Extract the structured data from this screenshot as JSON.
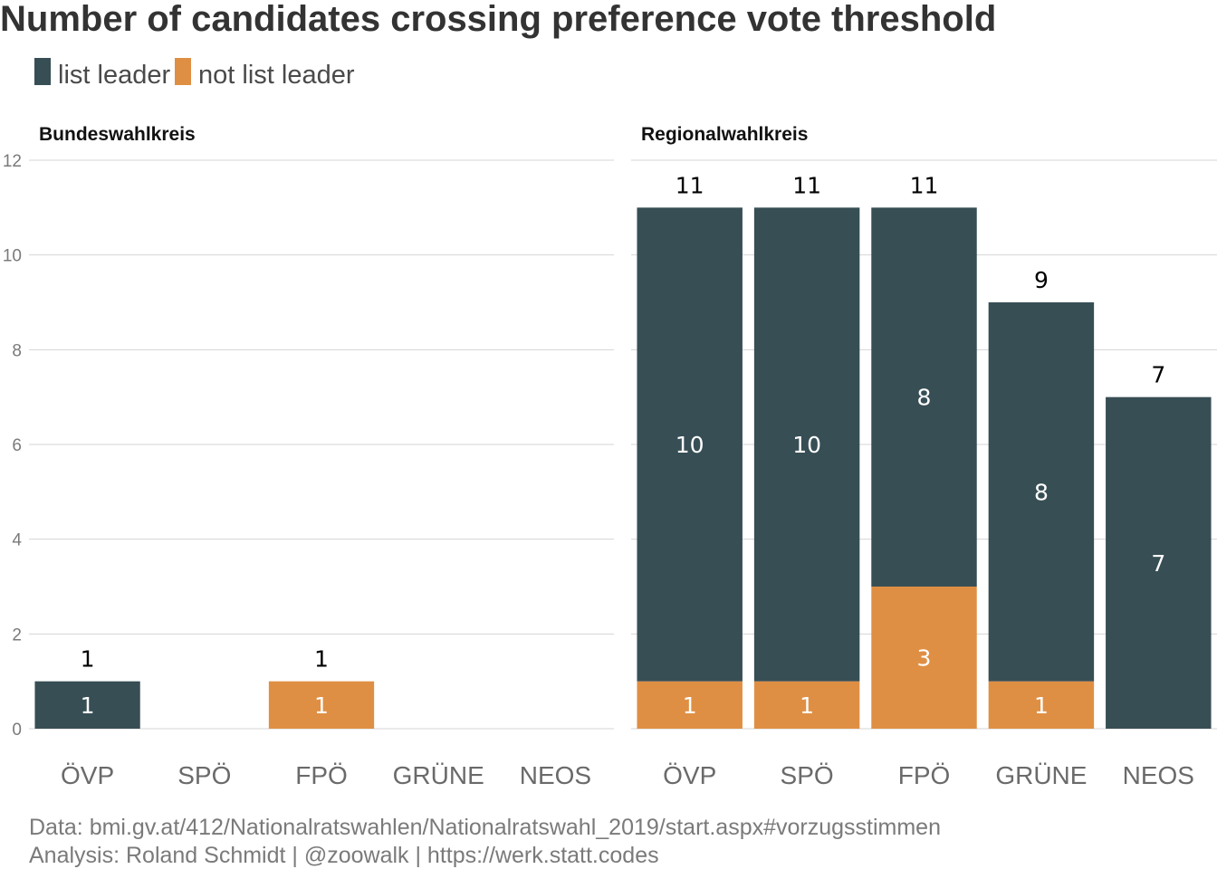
{
  "title": "Number of candidates crossing preference vote threshold",
  "legend": [
    {
      "label": "list leader",
      "color": "#374e55"
    },
    {
      "label": "not list leader",
      "color": "#df8f44"
    }
  ],
  "caption": {
    "line1": "Data: bmi.gv.at/412/Nationalratswahlen/Nationalratswahl_2019/start.aspx#vorzugsstimmen",
    "line2": "Analysis: Roland Schmidt | @zoowalk | https://werk.statt.codes"
  },
  "chart_data": {
    "type": "bar",
    "stacked": true,
    "ylim": [
      0,
      12
    ],
    "yticks": [
      "0",
      "2",
      "4",
      "6",
      "8",
      "10",
      "12"
    ],
    "grid": true,
    "legend_position": "top-left",
    "categories": [
      "ÖVP",
      "SPÖ",
      "FPÖ",
      "GRÜNE",
      "NEOS"
    ],
    "panels": [
      {
        "name": "Bundeswahlkreis",
        "series": [
          {
            "name": "not list leader",
            "values": [
              0,
              0,
              1,
              0,
              0
            ]
          },
          {
            "name": "list leader",
            "values": [
              1,
              0,
              0,
              0,
              0
            ]
          }
        ],
        "totals": [
          1,
          0,
          1,
          0,
          0
        ]
      },
      {
        "name": "Regionalwahlkreis",
        "series": [
          {
            "name": "not list leader",
            "values": [
              1,
              1,
              3,
              1,
              0
            ]
          },
          {
            "name": "list leader",
            "values": [
              10,
              10,
              8,
              8,
              7
            ]
          }
        ],
        "totals": [
          11,
          11,
          11,
          9,
          7
        ]
      }
    ]
  }
}
